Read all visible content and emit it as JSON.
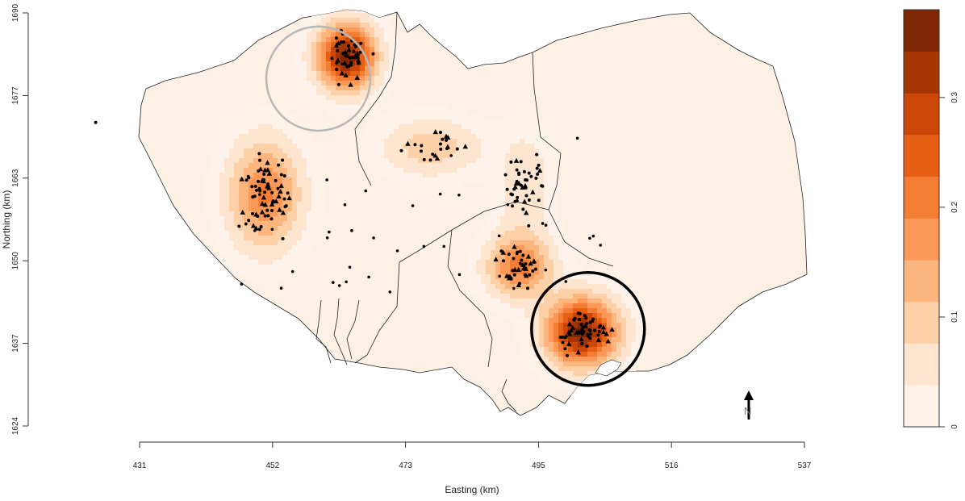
{
  "chart_data": {
    "type": "heatmap",
    "xlabel": "Easting (km)",
    "ylabel": "Northing (km)",
    "x_ticks": [
      "431",
      "452",
      "473",
      "495",
      "516",
      "537"
    ],
    "y_ticks": [
      "1624",
      "1637",
      "1650",
      "1663",
      "1677",
      "1690"
    ],
    "xlim": [
      431,
      537
    ],
    "ylim": [
      1624,
      1690
    ],
    "legend": {
      "placement": "right",
      "ticks": [
        "0",
        "0.1",
        "0.2",
        "0.3"
      ],
      "range": [
        0,
        0.38
      ],
      "colors": [
        "#fdf3ea",
        "#fde5cf",
        "#fdd0a8",
        "#fdb57e",
        "#fc9858",
        "#f57c33",
        "#e75f14",
        "#cc4608",
        "#a53603",
        "#7f2704"
      ]
    },
    "hotspots": [
      {
        "x": 464.0,
        "y": 1683.0,
        "peak": 0.36,
        "sx": 3.2,
        "sy": 3.6
      },
      {
        "x": 451.0,
        "y": 1661.0,
        "peak": 0.2,
        "sx": 4.0,
        "sy": 6.0
      },
      {
        "x": 477.5,
        "y": 1668.5,
        "peak": 0.1,
        "sx": 5.5,
        "sy": 3.2
      },
      {
        "x": 491.5,
        "y": 1649.5,
        "peak": 0.2,
        "sx": 3.6,
        "sy": 3.4
      },
      {
        "x": 501.5,
        "y": 1639.0,
        "peak": 0.36,
        "sx": 4.0,
        "sy": 3.8
      },
      {
        "x": 492.5,
        "y": 1662.0,
        "peak": 0.07,
        "sx": 3.0,
        "sy": 6.5
      }
    ],
    "circles": [
      {
        "x": 459.5,
        "y": 1679.5,
        "r": 8.3,
        "color": "gray"
      },
      {
        "x": 502.5,
        "y": 1639.5,
        "r": 9.0,
        "color": "black"
      }
    ],
    "north_arrow_label": "N",
    "colors": {
      "region_fill": "#fdf1e6",
      "border": "#222222",
      "gray_circle": "#b8b8b8",
      "black_circle": "#000000"
    }
  }
}
